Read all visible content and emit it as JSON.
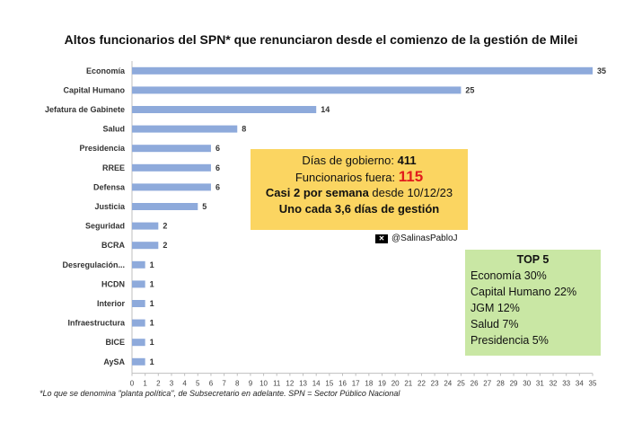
{
  "chart_data": {
    "type": "bar",
    "orientation": "horizontal",
    "title": "Altos funcionarios del SPN* que renunciaron desde el comienzo de la gestión de Milei",
    "categories": [
      "Economía",
      "Capital Humano",
      "Jefatura de Gabinete",
      "Salud",
      "Presidencia",
      "RREE",
      "Defensa",
      "Justicia",
      "Seguridad",
      "BCRA",
      "Desregulación...",
      "HCDN",
      "Interior",
      "Infraestructura",
      "BICE",
      "AySA"
    ],
    "values": [
      35,
      25,
      14,
      8,
      6,
      6,
      6,
      5,
      2,
      2,
      1,
      1,
      1,
      1,
      1,
      1
    ],
    "xlim": [
      0,
      35
    ],
    "xticks": [
      0,
      1,
      2,
      3,
      4,
      5,
      6,
      7,
      8,
      9,
      10,
      11,
      12,
      13,
      14,
      15,
      16,
      17,
      18,
      19,
      20,
      21,
      22,
      23,
      24,
      25,
      26,
      27,
      28,
      29,
      30,
      31,
      32,
      33,
      34,
      35
    ],
    "bar_color": "#8eaadb",
    "legend": "none"
  },
  "footnote": "*Lo que se denomina \"planta política\", de Subsecretario en adelante. SPN = Sector Público Nacional",
  "summary_box": {
    "dias_label": "Días de gobierno:",
    "dias_value": "411",
    "funcionarios_label": "Funcionarios fuera:",
    "funcionarios_value": "115",
    "line3_bold": "Casi 2 por semana",
    "line3_rest": " desde 10/12/23",
    "line4": "Uno cada 3,6 días de gestión"
  },
  "handle": "@SalinasPabloJ",
  "top5": {
    "title": "TOP 5",
    "items": [
      "Economía 30%",
      "Capital Humano 22%",
      "JGM 12%",
      "Salud 7%",
      "Presidencia 5%"
    ]
  },
  "colors": {
    "bar": "#8eaadb",
    "yellow": "#fbd561",
    "green": "#c9e7a4",
    "red": "#e21c1c"
  }
}
